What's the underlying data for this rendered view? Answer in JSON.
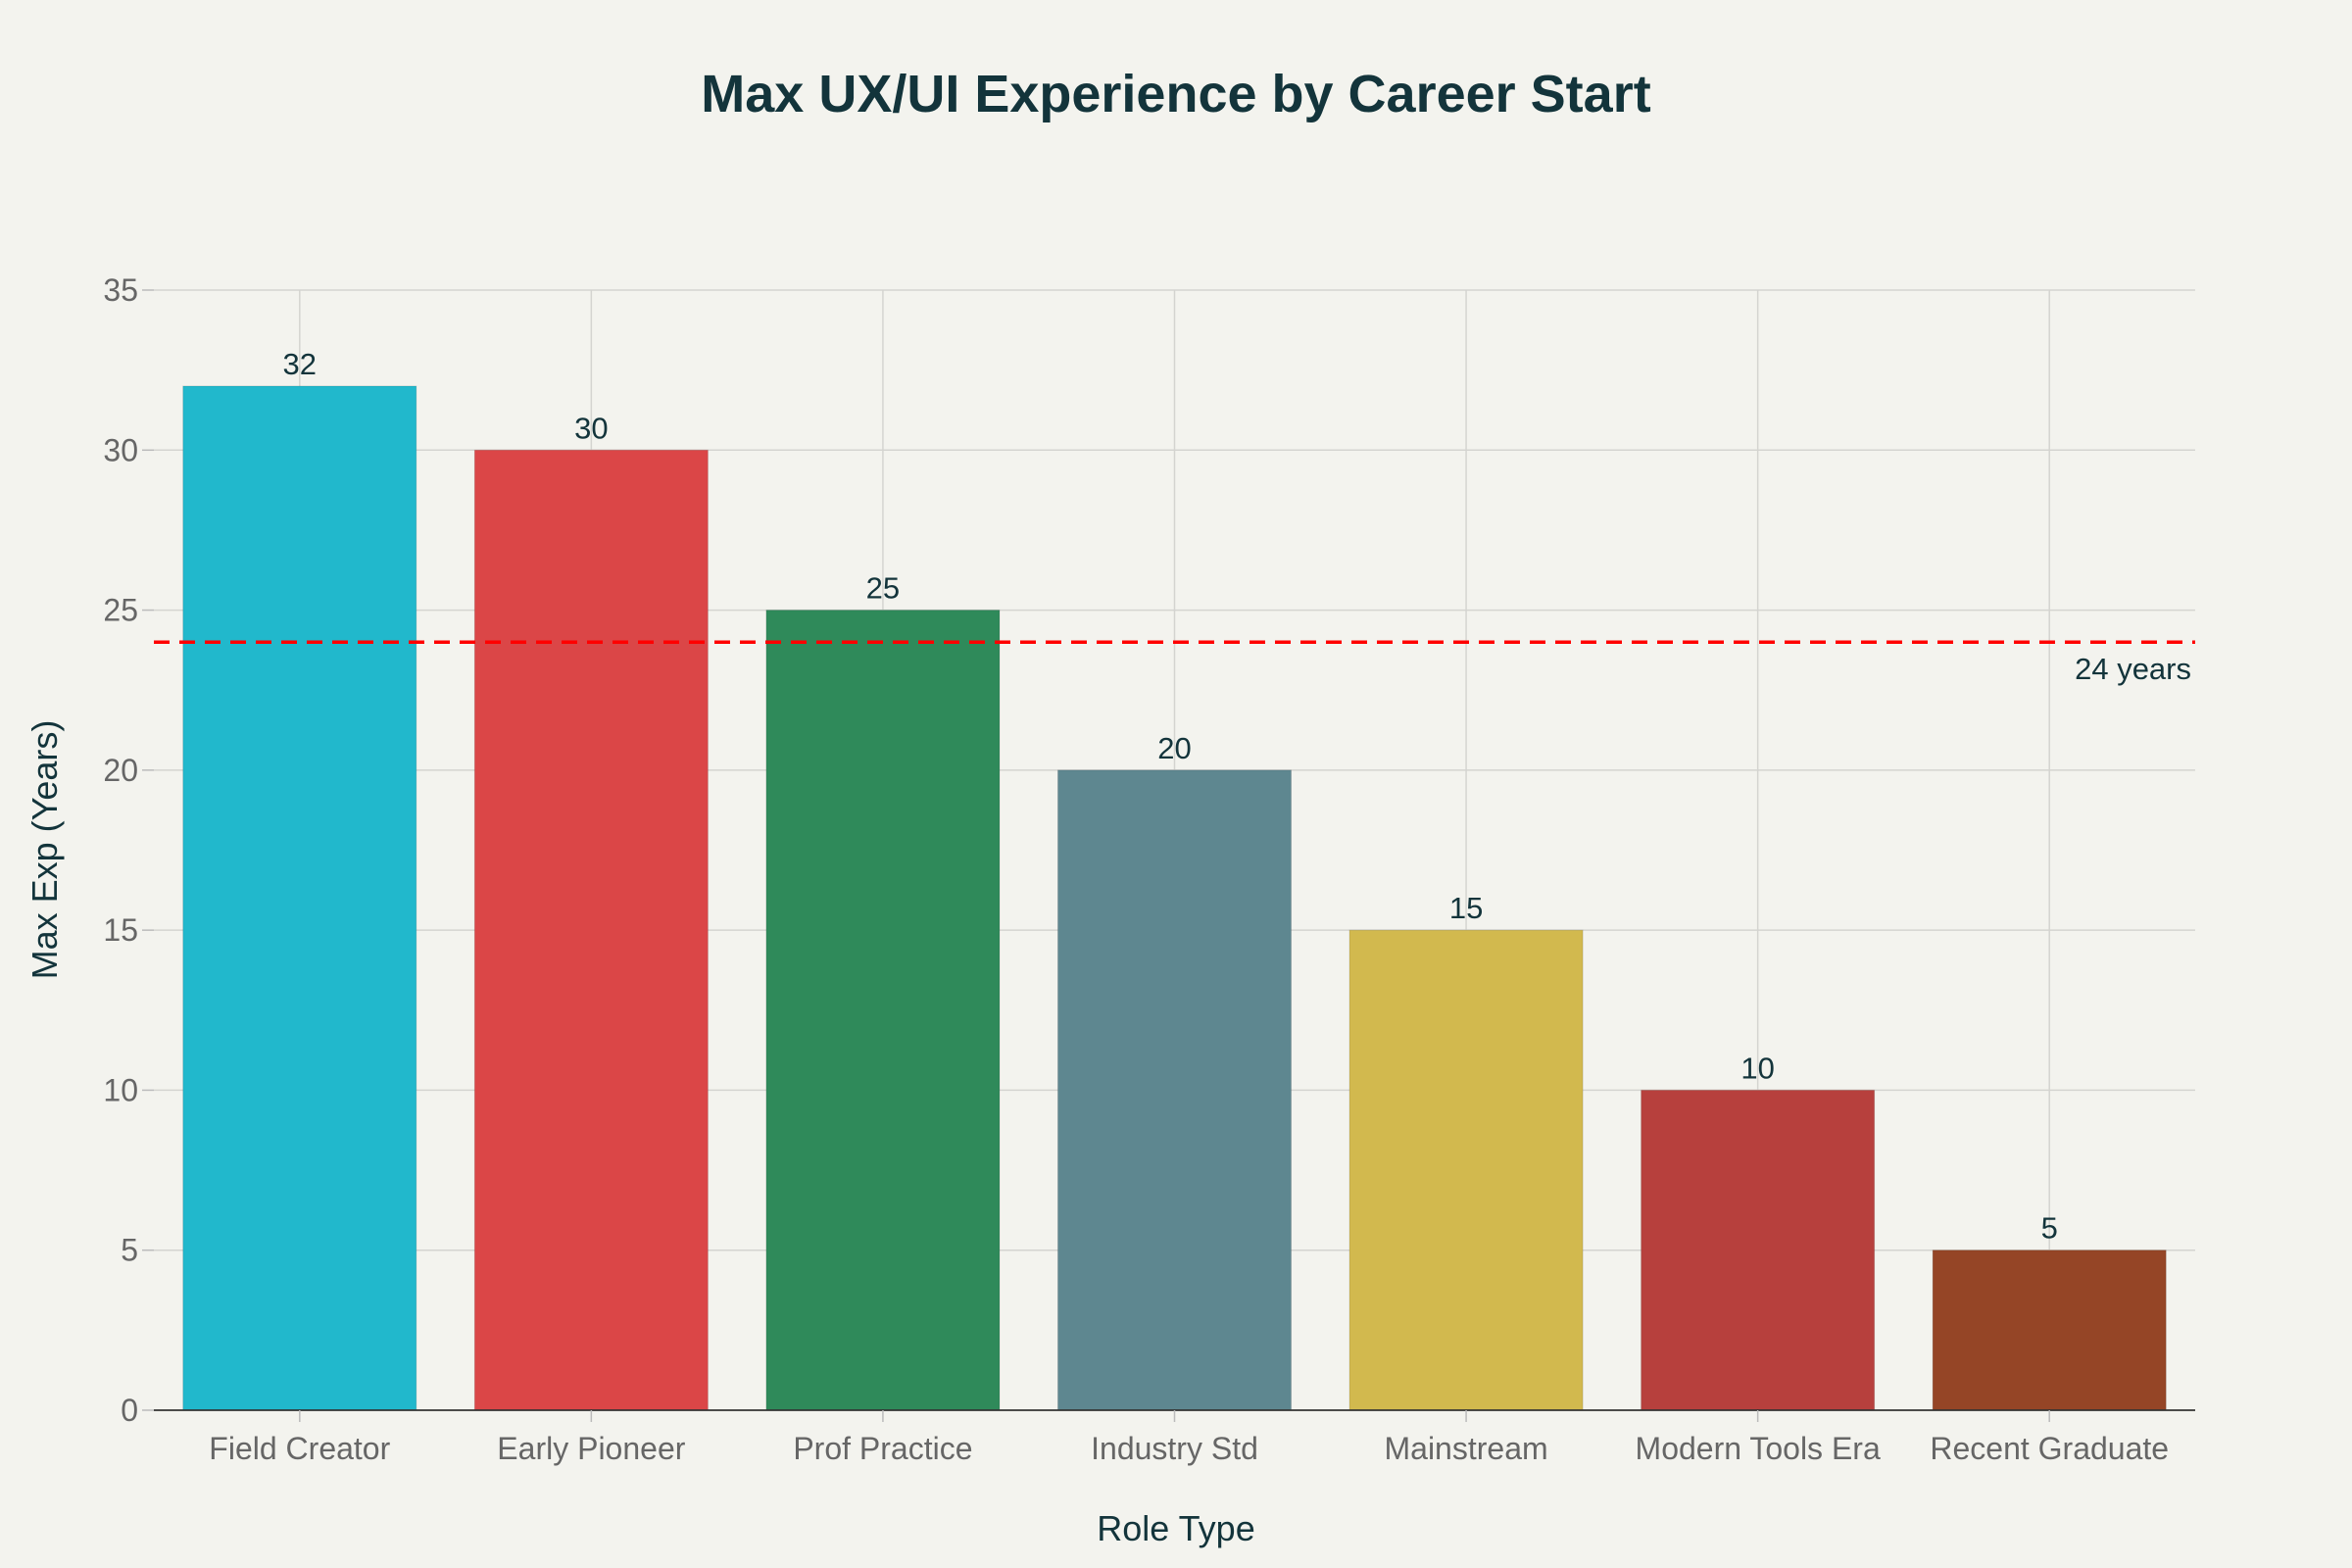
{
  "chart_data": {
    "type": "bar",
    "title": "Max UX/UI Experience by Career Start",
    "xlabel": "Role Type",
    "ylabel": "Max Exp (Years)",
    "categories": [
      "Field Creator",
      "Early Pioneer",
      "Prof Practice",
      "Industry Std",
      "Mainstream",
      "Modern Tools Era",
      "Recent Graduate"
    ],
    "values": [
      32,
      30,
      25,
      20,
      15,
      10,
      5
    ],
    "colors": [
      "#21b8cc",
      "#db4647",
      "#2f8a5a",
      "#5e8790",
      "#d2b94e",
      "#b7403d",
      "#954526"
    ],
    "ylim": [
      0,
      35
    ],
    "yticks": [
      0,
      5,
      10,
      15,
      20,
      25,
      30,
      35
    ],
    "grid": true,
    "reference_line": {
      "value": 24,
      "label": "24 years",
      "color": "#ff0000",
      "style": "dashed"
    }
  }
}
